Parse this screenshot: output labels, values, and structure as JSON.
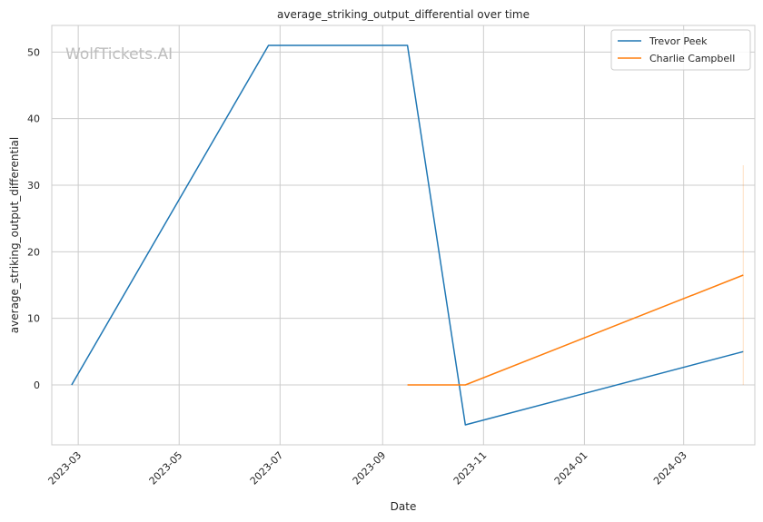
{
  "chart_data": {
    "type": "line",
    "title": "average_striking_output_differential over time",
    "xlabel": "Date",
    "ylabel": "average_striking_output_differential",
    "watermark": "WolfTickets.AI",
    "x_ticks": [
      "2023-03",
      "2023-05",
      "2023-07",
      "2023-09",
      "2023-11",
      "2024-01",
      "2024-03"
    ],
    "y_ticks": [
      0,
      10,
      20,
      30,
      40,
      50
    ],
    "xlim": [
      "2023-02-13",
      "2024-04-13"
    ],
    "ylim": [
      -9,
      54
    ],
    "grid": true,
    "legend_position": "top-right",
    "series": [
      {
        "name": "Trevor Peek",
        "color": "#1f77b4",
        "points": [
          {
            "x": "2023-02-25",
            "y": 0
          },
          {
            "x": "2023-06-24",
            "y": 51
          },
          {
            "x": "2023-09-16",
            "y": 51
          },
          {
            "x": "2023-10-21",
            "y": -6
          },
          {
            "x": "2024-04-06",
            "y": 5
          }
        ]
      },
      {
        "name": "Charlie Campbell",
        "color": "#ff7f0e",
        "points": [
          {
            "x": "2023-09-16",
            "y": 0
          },
          {
            "x": "2023-10-21",
            "y": 0
          },
          {
            "x": "2024-04-06",
            "y": 16.5
          }
        ],
        "error_band": {
          "x": "2024-04-06",
          "low": 0,
          "high": 33
        }
      }
    ]
  }
}
